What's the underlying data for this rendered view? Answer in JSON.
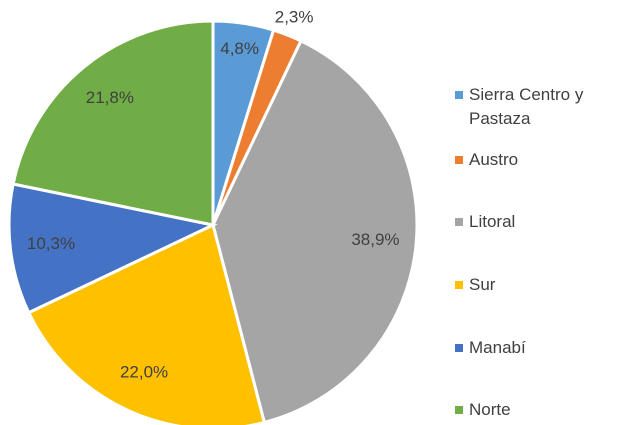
{
  "chart_data": {
    "type": "pie",
    "categories": [
      "Sierra Centro y Pastaza",
      "Austro",
      "Litoral",
      "Sur",
      "Manabí",
      "Norte"
    ],
    "values": [
      4.8,
      2.3,
      38.9,
      22.0,
      10.3,
      21.8
    ],
    "value_labels": [
      "4,8%",
      "2,3%",
      "38,9%",
      "22,0%",
      "10,3%",
      "21,8%"
    ],
    "colors": [
      "#5b9bd5",
      "#ed7d31",
      "#a5a5a5",
      "#ffc000",
      "#4472c4",
      "#70ad47"
    ],
    "legend": "right"
  }
}
